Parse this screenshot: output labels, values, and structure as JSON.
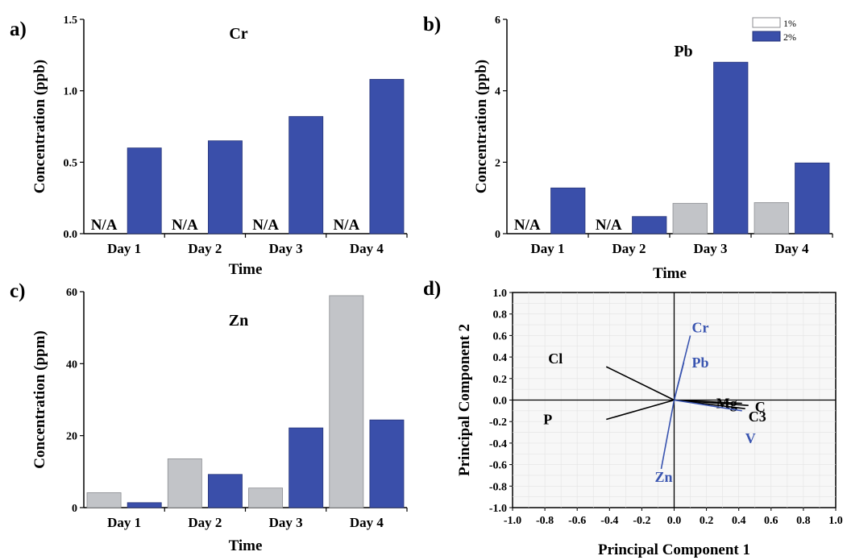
{
  "chart_data": [
    {
      "panel": "a)",
      "type": "bar",
      "title": "Cr",
      "xlabel": "Time",
      "ylabel": "Concentration (ppb)",
      "categories": [
        "Day 1",
        "Day 2",
        "Day 3",
        "Day 4"
      ],
      "ylim": [
        0,
        1.5
      ],
      "yticks": [
        "0.0",
        "0.5",
        "1.0",
        "1.5"
      ],
      "series": [
        {
          "name": "1%",
          "values": [
            null,
            null,
            null,
            null
          ]
        },
        {
          "name": "2%",
          "values": [
            0.6,
            0.65,
            0.82,
            1.08
          ]
        }
      ],
      "na_label": "N/A"
    },
    {
      "panel": "b)",
      "type": "bar",
      "title": "Pb",
      "xlabel": "Time",
      "ylabel": "Concentration (ppb)",
      "categories": [
        "Day 1",
        "Day 2",
        "Day 3",
        "Day 4"
      ],
      "ylim": [
        0,
        6
      ],
      "yticks": [
        "0",
        "2",
        "4",
        "6"
      ],
      "series": [
        {
          "name": "1%",
          "values": [
            null,
            null,
            0.85,
            0.87
          ]
        },
        {
          "name": "2%",
          "values": [
            1.28,
            0.48,
            4.8,
            1.98
          ]
        }
      ],
      "na_label": "N/A",
      "legend": {
        "placement": "top-right",
        "entries": [
          "1%",
          "2%"
        ]
      }
    },
    {
      "panel": "c)",
      "type": "bar",
      "title": "Zn",
      "xlabel": "Time",
      "ylabel": "Concentration (ppm)",
      "categories": [
        "Day 1",
        "Day 2",
        "Day 3",
        "Day 4"
      ],
      "ylim": [
        0,
        65
      ],
      "yticks": [
        "0",
        "20",
        "40",
        "60"
      ],
      "series": [
        {
          "name": "1%",
          "values": [
            4.5,
            14.7,
            5.9,
            63.8
          ]
        },
        {
          "name": "2%",
          "values": [
            1.5,
            10,
            24,
            26.4
          ]
        }
      ]
    },
    {
      "panel": "d)",
      "type": "scatter",
      "subtype": "loadings",
      "xlabel": "Principal Component 1",
      "ylabel": "Principal Component 2",
      "xlim": [
        -1.0,
        1.0
      ],
      "ylim": [
        -1.0,
        1.0
      ],
      "xticks": [
        "-1.0",
        "-0.8",
        "-0.6",
        "-0.4",
        "-0.2",
        "0.0",
        "0.2",
        "0.4",
        "0.6",
        "0.8",
        "1.0"
      ],
      "yticks": [
        "1.0",
        "0.8",
        "0.6",
        "0.4",
        "0.2",
        "0.0",
        "-0.2",
        "-0.4",
        "-0.6",
        "-0.8",
        "-1.0"
      ],
      "grid": true,
      "vectors": [
        {
          "label": "Cr",
          "x": 0.1,
          "y": 0.6,
          "color": "#3a55b0"
        },
        {
          "label": "Pb",
          "x": 0.06,
          "y": 0.35,
          "color": "#3a55b0"
        },
        {
          "label": "Cl",
          "x": -0.42,
          "y": 0.31,
          "color": "#000000"
        },
        {
          "label": "P",
          "x": -0.42,
          "y": -0.18,
          "color": "#000000"
        },
        {
          "label": "Zn",
          "x": -0.08,
          "y": -0.64,
          "color": "#3a55b0"
        },
        {
          "label": "Mg",
          "x": 0.42,
          "y": -0.03,
          "color": "#000000"
        },
        {
          "label": "C",
          "x": 0.46,
          "y": -0.05,
          "color": "#000000"
        },
        {
          "label": "C3",
          "x": 0.44,
          "y": -0.08,
          "color": "#000000"
        },
        {
          "label": "V",
          "x": 0.42,
          "y": -0.1,
          "color": "#3a55b0"
        }
      ]
    }
  ],
  "colors": {
    "pct1": "#c2c4c8",
    "pct2": "#3a4faa",
    "blue_text": "#3a55b0"
  }
}
